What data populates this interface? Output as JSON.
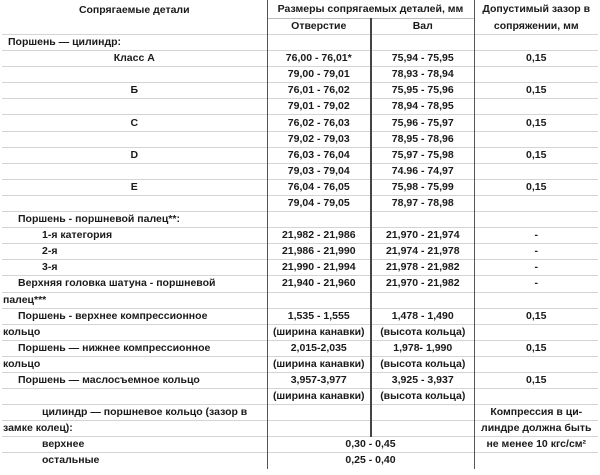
{
  "header": {
    "parts": "Сопрягаемые детали",
    "sizes": "Размеры сопрягаемых деталей, мм",
    "clearance": "Допустимый зазор в",
    "clearance_2": "сопряжении, мм",
    "hole": "Отверстие",
    "shaft": "Вал"
  },
  "rows": [
    {
      "part": "Поршень — цилиндр:",
      "indent": "i0",
      "hole": "",
      "shaft": "",
      "gap": ""
    },
    {
      "part": "Класс А",
      "indent": "ic",
      "hole": "76,00 - 76,01*",
      "shaft": "75,94 - 75,95",
      "gap": "0,15"
    },
    {
      "part": "",
      "indent": "i0",
      "hole": "79,00 - 79,01",
      "shaft": "78,93 - 78,94",
      "gap": ""
    },
    {
      "part": "Б",
      "indent": "ic",
      "hole": "76,01 - 76,02",
      "shaft": "75,95 - 75,96",
      "gap": "0,15"
    },
    {
      "part": "",
      "indent": "i0",
      "hole": "79,01 - 79,02",
      "shaft": "78,94 - 78,95",
      "gap": ""
    },
    {
      "part": "C",
      "indent": "ic",
      "hole": "76,02 - 76,03",
      "shaft": "75,96 - 75,97",
      "gap": "0,15"
    },
    {
      "part": "",
      "indent": "i0",
      "hole": "79,02 - 79,03",
      "shaft": "78,95 - 78,96",
      "gap": ""
    },
    {
      "part": "D",
      "indent": "ic",
      "hole": "76,03 - 76,04",
      "shaft": "75,97 - 75,98",
      "gap": "0,15"
    },
    {
      "part": "",
      "indent": "i0",
      "hole": "79,03 - 79,04",
      "shaft": "74.96 - 74,97",
      "gap": ""
    },
    {
      "part": "E",
      "indent": "ic",
      "hole": "76,04 - 76,05",
      "shaft": "75,98 - 75,99",
      "gap": "0,15"
    },
    {
      "part": "",
      "indent": "i0",
      "hole": "79,04 - 79,05",
      "shaft": "78,97 - 78,98",
      "gap": ""
    },
    {
      "part": "Поршень - поршневой палец**:",
      "indent": "i1",
      "hole": "",
      "shaft": "",
      "gap": ""
    },
    {
      "part": "1-я категория",
      "indent": "i2",
      "hole": "21,982 - 21,986",
      "shaft": "21,970 - 21,974",
      "gap": "-"
    },
    {
      "part": "2-я",
      "indent": "i2",
      "hole": "21,986 - 21,990",
      "shaft": "21,974 - 21,978",
      "gap": "-"
    },
    {
      "part": "3-я",
      "indent": "i2",
      "hole": "21,990 - 21,994",
      "shaft": "21,978 - 21,982",
      "gap": "-"
    },
    {
      "part": "Верхняя головка шатуна - поршневой",
      "indent": "i1",
      "hole": "21,940 - 21,960",
      "shaft": "21,970 - 21,982",
      "gap": "-"
    },
    {
      "part": "палец***",
      "indent": "ib",
      "hole": "",
      "shaft": "",
      "gap": ""
    },
    {
      "part": "Поршень - верхнее компрессионное",
      "indent": "i1",
      "hole": "1,535 - 1,555",
      "shaft": "1,478 - 1,490",
      "gap": "0,15"
    },
    {
      "part": "кольцо",
      "indent": "ib",
      "hole": "(ширина канавки)",
      "shaft": "(высота кольца)",
      "gap": ""
    },
    {
      "part": "Поршень — нижнее компрессионное",
      "indent": "i1",
      "hole": "2,015-2,035",
      "shaft": "1,978- 1,990",
      "gap": "0,15"
    },
    {
      "part": "кольцо",
      "indent": "ib",
      "hole": "(ширина канавки)",
      "shaft": "(высота кольца)",
      "gap": ""
    },
    {
      "part": "Поршень — маслосъемное кольцо",
      "indent": "i1",
      "hole": "3,957-3,977",
      "shaft": "3,925 - 3,937",
      "gap": "0,15"
    },
    {
      "part": "",
      "indent": "i0",
      "hole": "(ширина канавки)",
      "shaft": "(высота кольца)",
      "gap": ""
    },
    {
      "part": "цилиндр — поршневое кольцо (зазор в",
      "indent": "i2",
      "hole": "",
      "shaft": "",
      "gap": "Компрессия в ци-"
    },
    {
      "part": "замке колец):",
      "indent": "ib",
      "hole": "",
      "shaft": "",
      "gap": "линдре должна быть"
    }
  ],
  "merged_rows": [
    {
      "part": "верхнее",
      "indent": "i2",
      "value": "0,30 - 0,45",
      "gap": "не менее 10 кгс/см²"
    },
    {
      "part": "остальные",
      "indent": "i2",
      "value": "0,25 - 0,40",
      "gap": ""
    }
  ]
}
